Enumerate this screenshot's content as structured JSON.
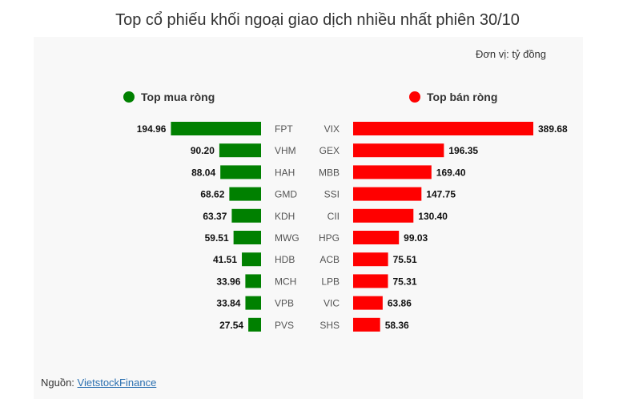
{
  "title": "Top cổ phiếu khối ngoại giao dịch nhiều nhất phiên 30/10",
  "unit_label": "Đơn vị: tỷ đồng",
  "source": {
    "prefix": "Nguồn: ",
    "link_text": "VietstockFinance"
  },
  "colors": {
    "buy": "#008000",
    "sell": "#ff0000"
  },
  "chart_data": {
    "type": "bar",
    "title": "Top cổ phiếu khối ngoại giao dịch nhiều nhất phiên 30/10",
    "unit": "tỷ đồng",
    "series": [
      {
        "name": "Top mua ròng",
        "orientation": "left",
        "categories": [
          "FPT",
          "VHM",
          "HAH",
          "GMD",
          "KDH",
          "MWG",
          "HDB",
          "MCH",
          "VPB",
          "PVS"
        ],
        "values": [
          194.96,
          90.2,
          88.04,
          68.62,
          63.37,
          59.51,
          41.51,
          33.96,
          33.84,
          27.54
        ],
        "labels": [
          "194.96",
          "90.20",
          "88.04",
          "68.62",
          "63.37",
          "59.51",
          "41.51",
          "33.96",
          "33.84",
          "27.54"
        ]
      },
      {
        "name": "Top bán ròng",
        "orientation": "right",
        "categories": [
          "VIX",
          "GEX",
          "MBB",
          "SSI",
          "CII",
          "HPG",
          "ACB",
          "LPB",
          "VIC",
          "SHS"
        ],
        "values": [
          389.68,
          196.35,
          169.4,
          147.75,
          130.4,
          99.03,
          75.51,
          75.31,
          63.86,
          58.36
        ],
        "labels": [
          "389.68",
          "196.35",
          "169.40",
          "147.75",
          "130.40",
          "99.03",
          "75.51",
          "75.31",
          "63.86",
          "58.36"
        ]
      }
    ]
  }
}
